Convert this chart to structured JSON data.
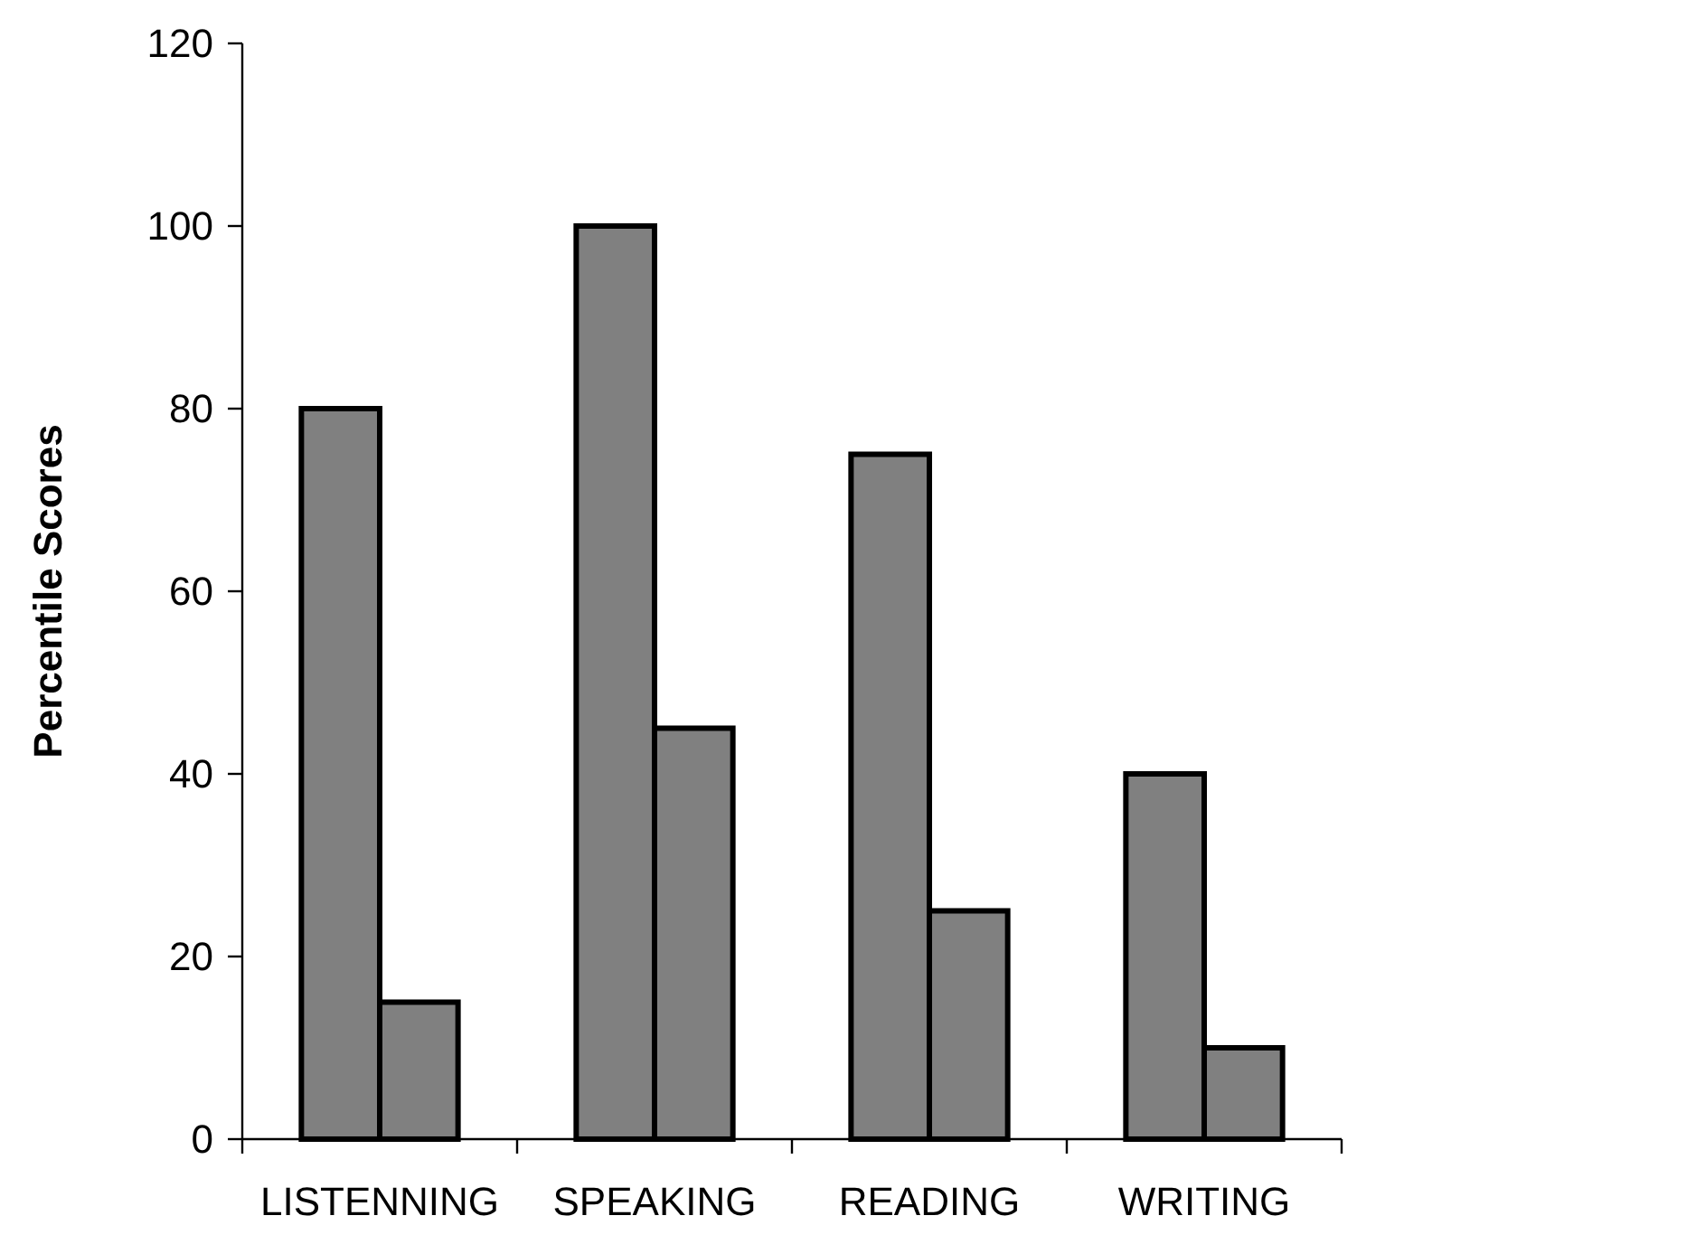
{
  "chart_data": {
    "type": "bar",
    "ylabel": "Percentile Scores",
    "categories": [
      "LISTENNING",
      "SPEAKING",
      "READING",
      "WRITING"
    ],
    "series": [
      {
        "color": "#808080",
        "values": [
          80,
          100,
          75,
          40
        ]
      },
      {
        "color": "#808080",
        "values": [
          15,
          45,
          25,
          10
        ]
      }
    ],
    "ylim": [
      0,
      120
    ],
    "yticks": [
      0,
      20,
      40,
      60,
      80,
      100,
      120
    ],
    "grid": false
  }
}
